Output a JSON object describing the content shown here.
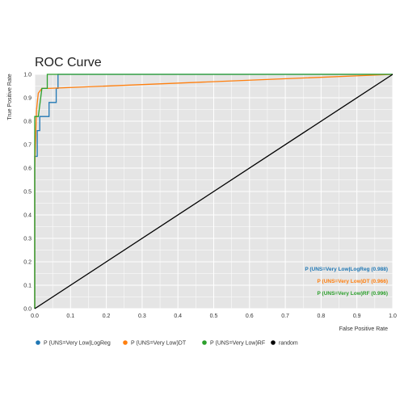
{
  "chart_data": {
    "type": "line",
    "title": "ROC Curve",
    "xlabel": "False Positive Rate",
    "ylabel": "True Positive Rate",
    "xlim": [
      0.0,
      1.0
    ],
    "ylim": [
      0.0,
      1.0
    ],
    "xticks": [
      "0.0",
      "0.1",
      "0.2",
      "0.3",
      "0.4",
      "0.5",
      "0.6",
      "0.7",
      "0.8",
      "0.9",
      "1.0"
    ],
    "yticks": [
      "0.0",
      "0.1",
      "0.2",
      "0.3",
      "0.4",
      "0.5",
      "0.6",
      "0.7",
      "0.8",
      "0.9",
      "1.0"
    ],
    "grid": true,
    "legend_placement": "bottom",
    "series": [
      {
        "name": "P (UNS=Very Low|LogReg",
        "color": "#1f77b4",
        "annotation": "P (UNS=Very Low|LogReg (0.988)",
        "x": [
          0.0,
          0.0,
          0.0,
          0.007,
          0.007,
          0.014,
          0.014,
          0.04,
          0.04,
          0.06,
          0.06,
          0.065,
          0.065,
          1.0
        ],
        "y": [
          0.0,
          0.65,
          0.65,
          0.65,
          0.76,
          0.76,
          0.82,
          0.82,
          0.88,
          0.88,
          0.94,
          0.94,
          1.0,
          1.0
        ]
      },
      {
        "name": "P (UNS=Very Low)DT",
        "color": "#ff7f0e",
        "annotation": "P (UNS=Very Low)DT (0.966)",
        "x": [
          0.0,
          0.0,
          0.005,
          0.01,
          0.02,
          0.04,
          1.0
        ],
        "y": [
          0.0,
          0.6,
          0.85,
          0.92,
          0.94,
          0.94,
          1.0
        ]
      },
      {
        "name": "P (UNS=Very Low)RF",
        "color": "#2ca02c",
        "annotation": "P (UNS=Very Low)RF (0.996)",
        "x": [
          0.0,
          0.0,
          0.0,
          0.005,
          0.01,
          0.02,
          0.02,
          0.035,
          0.035,
          1.0
        ],
        "y": [
          0.0,
          0.82,
          0.82,
          0.82,
          0.82,
          0.94,
          0.94,
          0.94,
          1.0,
          1.0
        ]
      },
      {
        "name": "random",
        "color": "#000000",
        "annotation": "",
        "x": [
          0.0,
          1.0
        ],
        "y": [
          0.0,
          1.0
        ]
      }
    ]
  }
}
